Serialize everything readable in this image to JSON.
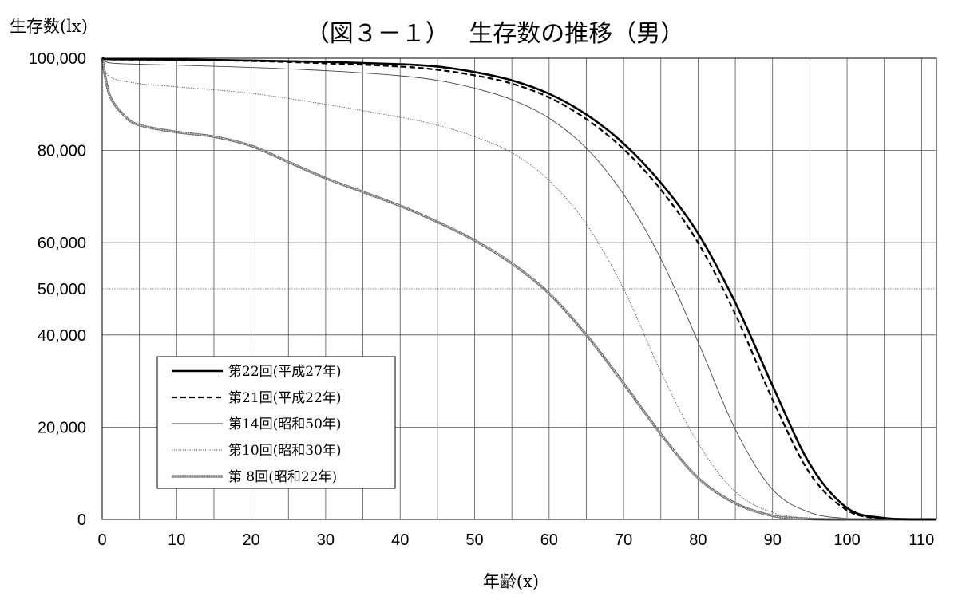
{
  "chart_data": {
    "type": "line",
    "title": "（図３－１）　 生存数の推移（男）",
    "ylabel": "生存数(lx)",
    "xlabel": "年齢(x)",
    "xlim": [
      0,
      112
    ],
    "ylim": [
      0,
      100000
    ],
    "x_ticks": [
      "0",
      "10",
      "20",
      "30",
      "40",
      "50",
      "60",
      "70",
      "80",
      "90",
      "100",
      "110"
    ],
    "y_ticks": [
      {
        "value": 0,
        "label": "0"
      },
      {
        "value": 20000,
        "label": "20,000"
      },
      {
        "value": 40000,
        "label": "40,000"
      },
      {
        "value": 50000,
        "label": "50,000"
      },
      {
        "value": 60000,
        "label": "60,000"
      },
      {
        "value": 80000,
        "label": "80,000"
      },
      {
        "value": 100000,
        "label": "100,000"
      }
    ],
    "grid": true,
    "legend_position": "bottom-left",
    "series": [
      {
        "name": "第22回(平成27年)",
        "style": "solid-thick",
        "points": [
          [
            0,
            100000
          ],
          [
            1,
            99800
          ],
          [
            5,
            99750
          ],
          [
            10,
            99700
          ],
          [
            20,
            99500
          ],
          [
            30,
            99200
          ],
          [
            40,
            98700
          ],
          [
            45,
            98200
          ],
          [
            50,
            97000
          ],
          [
            55,
            95200
          ],
          [
            60,
            92300
          ],
          [
            65,
            87800
          ],
          [
            70,
            81500
          ],
          [
            75,
            73000
          ],
          [
            80,
            62000
          ],
          [
            85,
            47000
          ],
          [
            90,
            29000
          ],
          [
            95,
            12000
          ],
          [
            100,
            2500
          ],
          [
            105,
            300
          ],
          [
            112,
            0
          ]
        ]
      },
      {
        "name": "第21回(平成22年)",
        "style": "dashed",
        "points": [
          [
            0,
            100000
          ],
          [
            1,
            99750
          ],
          [
            5,
            99700
          ],
          [
            10,
            99650
          ],
          [
            20,
            99400
          ],
          [
            30,
            98900
          ],
          [
            40,
            98200
          ],
          [
            45,
            97500
          ],
          [
            50,
            96300
          ],
          [
            55,
            94500
          ],
          [
            60,
            91500
          ],
          [
            65,
            86800
          ],
          [
            70,
            80300
          ],
          [
            75,
            71500
          ],
          [
            80,
            60000
          ],
          [
            85,
            44500
          ],
          [
            90,
            26000
          ],
          [
            95,
            10000
          ],
          [
            100,
            2000
          ],
          [
            105,
            200
          ],
          [
            112,
            0
          ]
        ]
      },
      {
        "name": "第14回(昭和50年)",
        "style": "solid-thin",
        "points": [
          [
            0,
            100000
          ],
          [
            1,
            99000
          ],
          [
            5,
            98700
          ],
          [
            10,
            98500
          ],
          [
            20,
            98000
          ],
          [
            30,
            97300
          ],
          [
            40,
            96200
          ],
          [
            45,
            95200
          ],
          [
            50,
            93500
          ],
          [
            55,
            91000
          ],
          [
            60,
            87000
          ],
          [
            65,
            80500
          ],
          [
            70,
            70500
          ],
          [
            75,
            56500
          ],
          [
            80,
            38500
          ],
          [
            85,
            19500
          ],
          [
            90,
            6500
          ],
          [
            95,
            1500
          ],
          [
            100,
            200
          ],
          [
            105,
            0
          ],
          [
            112,
            0
          ]
        ]
      },
      {
        "name": "第10回(昭和30年)",
        "style": "dotted",
        "points": [
          [
            0,
            100000
          ],
          [
            1,
            96000
          ],
          [
            5,
            94500
          ],
          [
            10,
            93800
          ],
          [
            20,
            92400
          ],
          [
            30,
            90000
          ],
          [
            40,
            87200
          ],
          [
            45,
            85500
          ],
          [
            50,
            83000
          ],
          [
            55,
            79500
          ],
          [
            60,
            73500
          ],
          [
            65,
            64000
          ],
          [
            70,
            50000
          ],
          [
            75,
            32000
          ],
          [
            80,
            16500
          ],
          [
            85,
            6000
          ],
          [
            90,
            1500
          ],
          [
            95,
            300
          ],
          [
            100,
            0
          ],
          [
            112,
            0
          ]
        ]
      },
      {
        "name": "第 8回(昭和22年)",
        "style": "double",
        "points": [
          [
            0,
            100000
          ],
          [
            1,
            92000
          ],
          [
            3,
            87500
          ],
          [
            5,
            85500
          ],
          [
            10,
            84000
          ],
          [
            15,
            83000
          ],
          [
            20,
            81000
          ],
          [
            25,
            77500
          ],
          [
            30,
            74000
          ],
          [
            35,
            71000
          ],
          [
            40,
            68000
          ],
          [
            45,
            64500
          ],
          [
            50,
            60500
          ],
          [
            55,
            55500
          ],
          [
            60,
            49000
          ],
          [
            65,
            40000
          ],
          [
            70,
            29500
          ],
          [
            75,
            18500
          ],
          [
            80,
            9000
          ],
          [
            85,
            3500
          ],
          [
            90,
            800
          ],
          [
            95,
            100
          ],
          [
            100,
            0
          ],
          [
            112,
            0
          ]
        ]
      }
    ]
  }
}
